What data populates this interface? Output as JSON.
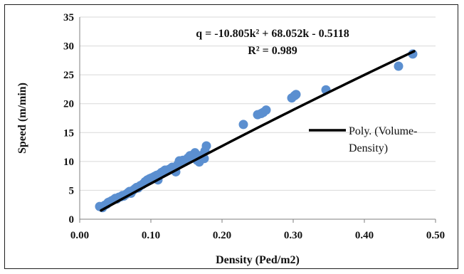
{
  "chart_data": {
    "type": "scatter",
    "xlabel": "Density (Ped/m2)",
    "ylabel": "Speed (m/min)",
    "xlim": [
      0.0,
      0.5
    ],
    "ylim": [
      0,
      35
    ],
    "x_ticks": [
      "0.00",
      "0.10",
      "0.20",
      "0.30",
      "0.40",
      "0.50"
    ],
    "y_ticks": [
      "0",
      "5",
      "10",
      "15",
      "20",
      "25",
      "30",
      "35"
    ],
    "grid": "horizontal",
    "annotation": {
      "equation": "q = -10.805k² + 68.052k - 0.5118",
      "r_squared": "R² = 0.989"
    },
    "legend": {
      "placement": "right",
      "line1": "Poly. (Volume-",
      "line2": "Density)"
    },
    "colors": {
      "points": "#5b8fd0",
      "trend": "#000000",
      "grid": "#d9d9d9"
    },
    "points": [
      [
        0.028,
        2.2
      ],
      [
        0.032,
        2.0
      ],
      [
        0.035,
        2.4
      ],
      [
        0.038,
        2.6
      ],
      [
        0.04,
        2.9
      ],
      [
        0.042,
        3.0
      ],
      [
        0.045,
        3.2
      ],
      [
        0.048,
        3.4
      ],
      [
        0.05,
        3.6
      ],
      [
        0.052,
        3.5
      ],
      [
        0.055,
        3.8
      ],
      [
        0.058,
        3.9
      ],
      [
        0.06,
        4.1
      ],
      [
        0.062,
        4.0
      ],
      [
        0.065,
        4.3
      ],
      [
        0.068,
        4.6
      ],
      [
        0.07,
        4.8
      ],
      [
        0.072,
        4.5
      ],
      [
        0.075,
        5.0
      ],
      [
        0.078,
        5.3
      ],
      [
        0.08,
        5.5
      ],
      [
        0.082,
        5.4
      ],
      [
        0.085,
        5.8
      ],
      [
        0.088,
        6.0
      ],
      [
        0.09,
        6.2
      ],
      [
        0.092,
        6.5
      ],
      [
        0.095,
        6.8
      ],
      [
        0.098,
        7.0
      ],
      [
        0.1,
        7.1
      ],
      [
        0.102,
        7.2
      ],
      [
        0.105,
        7.4
      ],
      [
        0.108,
        7.6
      ],
      [
        0.11,
        6.8
      ],
      [
        0.112,
        7.8
      ],
      [
        0.115,
        8.1
      ],
      [
        0.118,
        8.3
      ],
      [
        0.12,
        8.5
      ],
      [
        0.125,
        8.6
      ],
      [
        0.128,
        8.8
      ],
      [
        0.13,
        9.0
      ],
      [
        0.135,
        8.2
      ],
      [
        0.138,
        9.5
      ],
      [
        0.14,
        10.1
      ],
      [
        0.145,
        10.2
      ],
      [
        0.148,
        10.0
      ],
      [
        0.15,
        10.3
      ],
      [
        0.152,
        10.6
      ],
      [
        0.155,
        11.0
      ],
      [
        0.158,
        10.8
      ],
      [
        0.16,
        11.2
      ],
      [
        0.162,
        11.5
      ],
      [
        0.165,
        10.2
      ],
      [
        0.168,
        9.9
      ],
      [
        0.17,
        11.0
      ],
      [
        0.172,
        10.7
      ],
      [
        0.175,
        10.5
      ],
      [
        0.176,
        11.8
      ],
      [
        0.178,
        12.7
      ],
      [
        0.23,
        16.4
      ],
      [
        0.25,
        18.1
      ],
      [
        0.255,
        18.3
      ],
      [
        0.258,
        18.5
      ],
      [
        0.262,
        18.9
      ],
      [
        0.298,
        21.0
      ],
      [
        0.302,
        21.4
      ],
      [
        0.304,
        21.6
      ],
      [
        0.346,
        22.4
      ],
      [
        0.448,
        26.5
      ],
      [
        0.468,
        28.6
      ]
    ],
    "trendline": {
      "type": "polynomial",
      "x_range": [
        0.03,
        0.47
      ],
      "coefficients": [
        -10.805,
        68.052,
        -0.5118
      ]
    }
  }
}
